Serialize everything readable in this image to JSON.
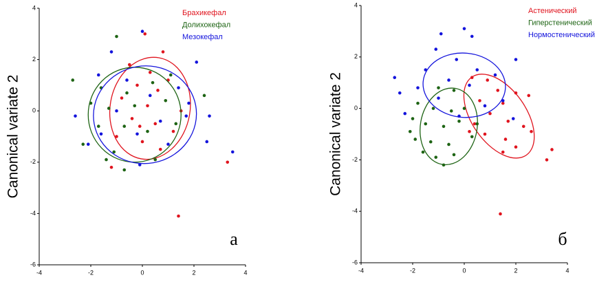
{
  "chart_data": [
    {
      "type": "scatter",
      "ylabel": "Canonical variate 2",
      "panel_label": "а",
      "xlim": [
        -4,
        4
      ],
      "ylim": [
        -6,
        4
      ],
      "xticks": [
        -4,
        -2,
        0,
        2,
        4
      ],
      "yticks": [
        -6,
        -4,
        -2,
        0,
        2,
        4
      ],
      "series": [
        {
          "name": "Брахикефал",
          "color": "#e0141e",
          "x": [
            0.1,
            0.8,
            -0.5,
            0.3,
            -0.2,
            0.6,
            1.0,
            -0.8,
            0.2,
            1.5,
            -0.4,
            0.5,
            1.2,
            -1.0,
            0.0,
            -1.2,
            3.3,
            1.4,
            0.7,
            -0.1
          ],
          "y": [
            3.0,
            2.3,
            1.8,
            1.5,
            1.0,
            0.8,
            1.2,
            0.5,
            0.2,
            0.0,
            -0.3,
            -0.5,
            -0.8,
            -1.0,
            -1.2,
            -2.2,
            -2.0,
            -4.1,
            -1.5,
            -0.6
          ],
          "ellipse": {
            "cx": 0.3,
            "cy": 0.1,
            "rx": 1.55,
            "ry": 2.0,
            "angle": 10
          }
        },
        {
          "name": "Долихокефал",
          "color": "#1e6414",
          "x": [
            -2.7,
            -1.0,
            -1.6,
            -0.6,
            0.4,
            1.1,
            -2.0,
            -1.3,
            -0.3,
            0.9,
            2.4,
            -1.7,
            -0.7,
            0.2,
            1.3,
            -2.3,
            -1.1,
            -0.7,
            0.5,
            -1.4
          ],
          "y": [
            1.2,
            2.9,
            0.9,
            0.7,
            1.1,
            1.4,
            0.3,
            0.1,
            0.2,
            0.4,
            0.6,
            -0.6,
            -0.6,
            -0.8,
            -0.5,
            -1.3,
            -1.6,
            -2.3,
            -1.9,
            -1.9
          ],
          "ellipse": {
            "cx": -0.3,
            "cy": -0.15,
            "rx": 1.8,
            "ry": 1.85,
            "angle": 0
          }
        },
        {
          "name": "Мезокефал",
          "color": "#1414dc",
          "x": [
            0.0,
            -1.2,
            -0.6,
            2.1,
            -1.7,
            -2.6,
            1.4,
            0.3,
            -1.0,
            1.7,
            2.6,
            -2.1,
            -0.2,
            1.0,
            2.5,
            -0.1,
            3.5,
            1.8,
            -1.6,
            0.7
          ],
          "y": [
            3.1,
            2.3,
            1.2,
            1.9,
            1.4,
            -0.2,
            0.9,
            0.6,
            0.0,
            -0.2,
            -0.2,
            -1.3,
            -0.9,
            -1.3,
            -1.2,
            -2.1,
            -1.6,
            0.3,
            -0.9,
            -0.4
          ],
          "ellipse": {
            "cx": 0.1,
            "cy": -0.15,
            "rx": 2.0,
            "ry": 1.9,
            "angle": -10
          }
        }
      ]
    },
    {
      "type": "scatter",
      "ylabel": "Canonical variate 2",
      "panel_label": "б",
      "xlim": [
        -4,
        4
      ],
      "ylim": [
        -6,
        4
      ],
      "xticks": [
        -4,
        -2,
        0,
        2,
        4
      ],
      "yticks": [
        -6,
        -4,
        -2,
        0,
        2,
        4
      ],
      "series": [
        {
          "name": "Астенический",
          "color": "#e0141e",
          "x": [
            0.3,
            0.9,
            1.3,
            2.0,
            0.6,
            1.5,
            2.5,
            1.0,
            0.4,
            1.7,
            2.3,
            2.6,
            0.8,
            1.6,
            2.0,
            1.5,
            3.2,
            3.4,
            1.4,
            0.2
          ],
          "y": [
            1.2,
            1.1,
            0.7,
            0.6,
            0.3,
            0.2,
            0.5,
            -0.2,
            -0.6,
            -0.5,
            -0.7,
            -0.9,
            -1.0,
            -1.2,
            -1.5,
            -1.7,
            -2.0,
            -1.6,
            -4.1,
            -0.9
          ],
          "ellipse": {
            "cx": 1.35,
            "cy": -0.3,
            "rx": 1.05,
            "ry": 1.85,
            "angle": -35
          }
        },
        {
          "name": "Гиперстенический",
          "color": "#1e6414",
          "x": [
            -1.0,
            -0.4,
            -1.8,
            -1.2,
            -0.5,
            0.0,
            -2.0,
            -1.5,
            -0.8,
            -0.2,
            -1.9,
            -1.3,
            -0.6,
            0.3,
            -1.1,
            -0.8,
            -0.4,
            -1.6,
            -2.1,
            0.5
          ],
          "y": [
            0.8,
            0.7,
            0.2,
            0.0,
            -0.1,
            0.0,
            -0.4,
            -0.6,
            -0.7,
            -0.5,
            -1.2,
            -1.3,
            -1.4,
            -1.1,
            -1.9,
            -2.2,
            -1.8,
            -1.7,
            -0.9,
            -0.6
          ],
          "ellipse": {
            "cx": -0.6,
            "cy": -0.7,
            "rx": 1.1,
            "ry": 1.5,
            "angle": 10
          }
        },
        {
          "name": "Нормостенический",
          "color": "#1414dc",
          "x": [
            -0.9,
            0.0,
            0.3,
            -1.1,
            -0.3,
            0.5,
            2.0,
            1.2,
            -1.5,
            -0.6,
            0.2,
            -2.7,
            -2.5,
            -1.8,
            -1.0,
            1.5,
            0.8,
            -2.3,
            1.9,
            -0.2
          ],
          "y": [
            2.9,
            3.1,
            2.8,
            2.3,
            1.9,
            1.5,
            1.9,
            1.3,
            1.5,
            1.1,
            0.9,
            1.2,
            0.6,
            0.8,
            0.4,
            0.3,
            0.1,
            -0.2,
            -0.4,
            -0.3
          ],
          "ellipse": {
            "cx": 0.0,
            "cy": 0.9,
            "rx": 1.6,
            "ry": 1.25,
            "angle": 5
          }
        }
      ]
    }
  ]
}
